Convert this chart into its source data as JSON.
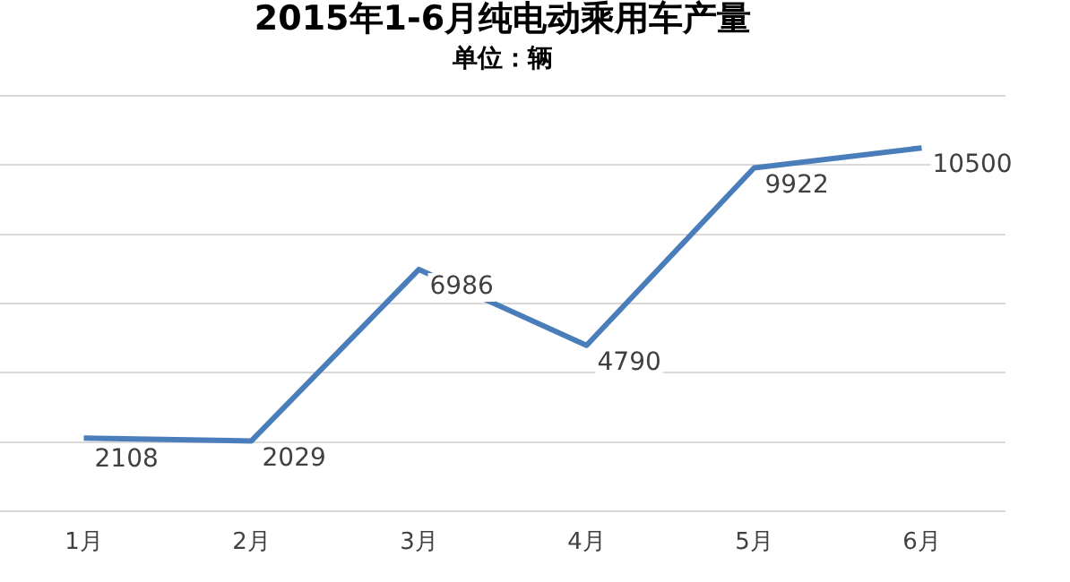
{
  "chart_data": {
    "type": "line",
    "title": "2015年1-6月纯电动乘用车产量",
    "subtitle": "单位：辆",
    "categories": [
      "1月",
      "2月",
      "3月",
      "4月",
      "5月",
      "6月"
    ],
    "series": [
      {
        "color": "#4a7ebb",
        "values": [
          2108,
          2029,
          6986,
          4790,
          9922,
          10500
        ]
      }
    ],
    "ylim": [
      0,
      12000
    ],
    "yticks": [
      {
        "value": 0,
        "label": null
      },
      {
        "value": 2000,
        "label": null
      },
      {
        "value": 4000,
        "label": null
      },
      {
        "value": 6000,
        "label": null
      },
      {
        "value": 8000,
        "label": null
      },
      {
        "value": 10000,
        "label": null
      },
      {
        "value": 12000,
        "label": null
      }
    ],
    "tick_labels": "x",
    "grid": "y",
    "legend": false,
    "marker": "none",
    "line_style": "solid",
    "data_labels": true
  }
}
